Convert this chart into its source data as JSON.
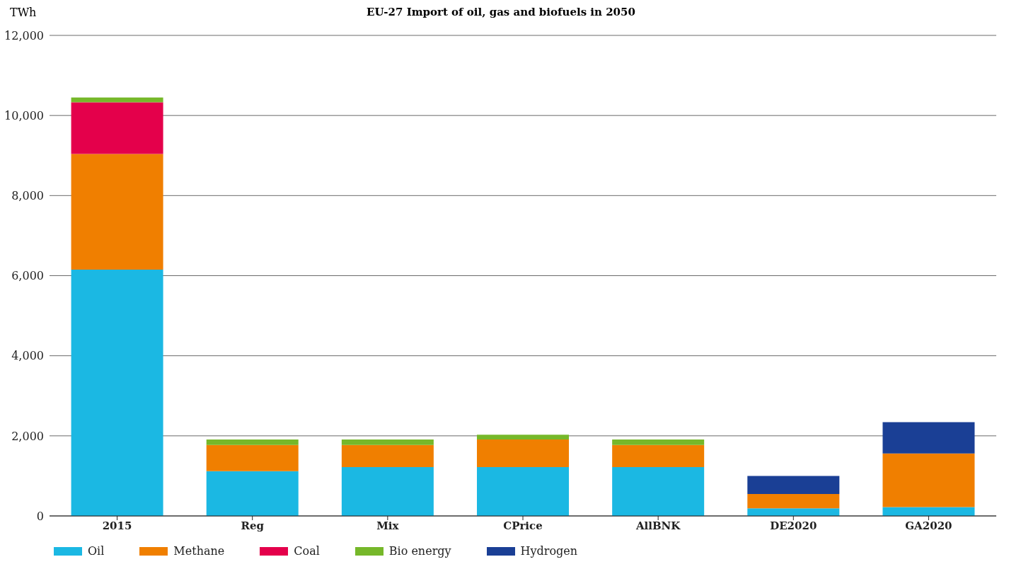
{
  "chart_data": {
    "type": "bar",
    "title": "EU-27 Import of oil, gas and biofuels in 2050",
    "ylabel": "TWh",
    "categories": [
      "2015",
      "Reg",
      "Mix",
      "CPrice",
      "AllBNK",
      "DE2020",
      "GA2020"
    ],
    "stacked": true,
    "series": [
      {
        "name": "Oil",
        "color": "#1bb8e3",
        "values": [
          6150,
          1120,
          1220,
          1220,
          1220,
          190,
          220
        ]
      },
      {
        "name": "Methane",
        "color": "#f07f00",
        "values": [
          2890,
          650,
          550,
          690,
          550,
          360,
          1340
        ]
      },
      {
        "name": "Coal",
        "color": "#e4004b",
        "values": [
          1290,
          0,
          0,
          0,
          0,
          0,
          0
        ]
      },
      {
        "name": "Bio energy",
        "color": "#76b82a",
        "values": [
          120,
          140,
          140,
          120,
          140,
          0,
          0
        ]
      },
      {
        "name": "Hydrogen",
        "color": "#1a3f95",
        "values": [
          0,
          0,
          0,
          0,
          0,
          450,
          780
        ]
      }
    ],
    "ylim": [
      0,
      12000
    ],
    "yticks": [
      0,
      {
        "value": 2000,
        "label": "2,000"
      },
      {
        "value": 4000,
        "label": "4,000"
      },
      {
        "value": 6000,
        "label": "6,000"
      },
      {
        "value": 8000,
        "label": "8,000"
      },
      {
        "value": 10000,
        "label": "10,000"
      },
      {
        "value": 12000,
        "label": "12,000"
      }
    ],
    "grid": "y",
    "legend": "bottom"
  }
}
